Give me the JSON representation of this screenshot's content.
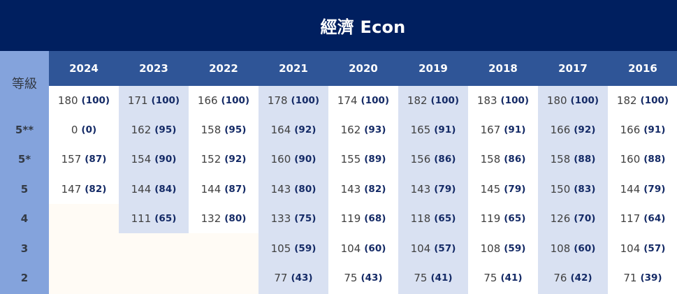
{
  "title": "經濟 Econ",
  "grade_header": "等級",
  "grades": [
    "",
    "5**",
    "5*",
    "5",
    "4",
    "3",
    "2"
  ],
  "years": [
    "2024",
    "2023",
    "2022",
    "2021",
    "2020",
    "2019",
    "2018",
    "2017",
    "2016"
  ],
  "columns": [
    {
      "year": "2024",
      "shade": "white",
      "cells": [
        {
          "score": "180",
          "pct": "(100)"
        },
        {
          "score": "0",
          "pct": "(0)"
        },
        {
          "score": "157",
          "pct": "(87)"
        },
        {
          "score": "147",
          "pct": "(82)"
        }
      ]
    },
    {
      "year": "2023",
      "shade": "blue",
      "cells": [
        {
          "score": "171",
          "pct": "(100)"
        },
        {
          "score": "162",
          "pct": "(95)"
        },
        {
          "score": "154",
          "pct": "(90)"
        },
        {
          "score": "144",
          "pct": "(84)"
        },
        {
          "score": "111",
          "pct": "(65)"
        }
      ]
    },
    {
      "year": "2022",
      "shade": "white",
      "cells": [
        {
          "score": "166",
          "pct": "(100)"
        },
        {
          "score": "158",
          "pct": "(95)"
        },
        {
          "score": "152",
          "pct": "(92)"
        },
        {
          "score": "144",
          "pct": "(87)"
        },
        {
          "score": "132",
          "pct": "(80)"
        }
      ]
    },
    {
      "year": "2021",
      "shade": "blue",
      "cells": [
        {
          "score": "178",
          "pct": "(100)"
        },
        {
          "score": "164",
          "pct": "(92)"
        },
        {
          "score": "160",
          "pct": "(90)"
        },
        {
          "score": "143",
          "pct": "(80)"
        },
        {
          "score": "133",
          "pct": "(75)"
        },
        {
          "score": "105",
          "pct": "(59)"
        },
        {
          "score": "77",
          "pct": "(43)"
        }
      ]
    },
    {
      "year": "2020",
      "shade": "white",
      "cells": [
        {
          "score": "174",
          "pct": "(100)"
        },
        {
          "score": "162",
          "pct": "(93)"
        },
        {
          "score": "155",
          "pct": "(89)"
        },
        {
          "score": "143",
          "pct": "(82)"
        },
        {
          "score": "119",
          "pct": "(68)"
        },
        {
          "score": "104",
          "pct": "(60)"
        },
        {
          "score": "75",
          "pct": "(43)"
        }
      ]
    },
    {
      "year": "2019",
      "shade": "blue",
      "cells": [
        {
          "score": "182",
          "pct": "(100)"
        },
        {
          "score": "165",
          "pct": "(91)"
        },
        {
          "score": "156",
          "pct": "(86)"
        },
        {
          "score": "143",
          "pct": "(79)"
        },
        {
          "score": "118",
          "pct": "(65)"
        },
        {
          "score": "104",
          "pct": "(57)"
        },
        {
          "score": "75",
          "pct": "(41)"
        }
      ]
    },
    {
      "year": "2018",
      "shade": "white",
      "cells": [
        {
          "score": "183",
          "pct": "(100)"
        },
        {
          "score": "167",
          "pct": "(91)"
        },
        {
          "score": "158",
          "pct": "(86)"
        },
        {
          "score": "145",
          "pct": "(79)"
        },
        {
          "score": "119",
          "pct": "(65)"
        },
        {
          "score": "108",
          "pct": "(59)"
        },
        {
          "score": "75",
          "pct": "(41)"
        }
      ]
    },
    {
      "year": "2017",
      "shade": "blue",
      "cells": [
        {
          "score": "180",
          "pct": "(100)"
        },
        {
          "score": "166",
          "pct": "(92)"
        },
        {
          "score": "158",
          "pct": "(88)"
        },
        {
          "score": "150",
          "pct": "(83)"
        },
        {
          "score": "126",
          "pct": "(70)"
        },
        {
          "score": "108",
          "pct": "(60)"
        },
        {
          "score": "76",
          "pct": "(42)"
        }
      ]
    },
    {
      "year": "2016",
      "shade": "white",
      "cells": [
        {
          "score": "182",
          "pct": "(100)"
        },
        {
          "score": "166",
          "pct": "(91)"
        },
        {
          "score": "160",
          "pct": "(88)"
        },
        {
          "score": "144",
          "pct": "(79)"
        },
        {
          "score": "117",
          "pct": "(64)"
        },
        {
          "score": "104",
          "pct": "(57)"
        },
        {
          "score": "71",
          "pct": "(39)"
        }
      ]
    }
  ],
  "colors": {
    "title_bg": "#001f5f",
    "header_bg": "#2f5597",
    "grade_col_bg": "#84a3dc",
    "shade_blue": "#d9e1f2",
    "empty_bg": "#fffbf5",
    "pct_text": "#142a66"
  }
}
